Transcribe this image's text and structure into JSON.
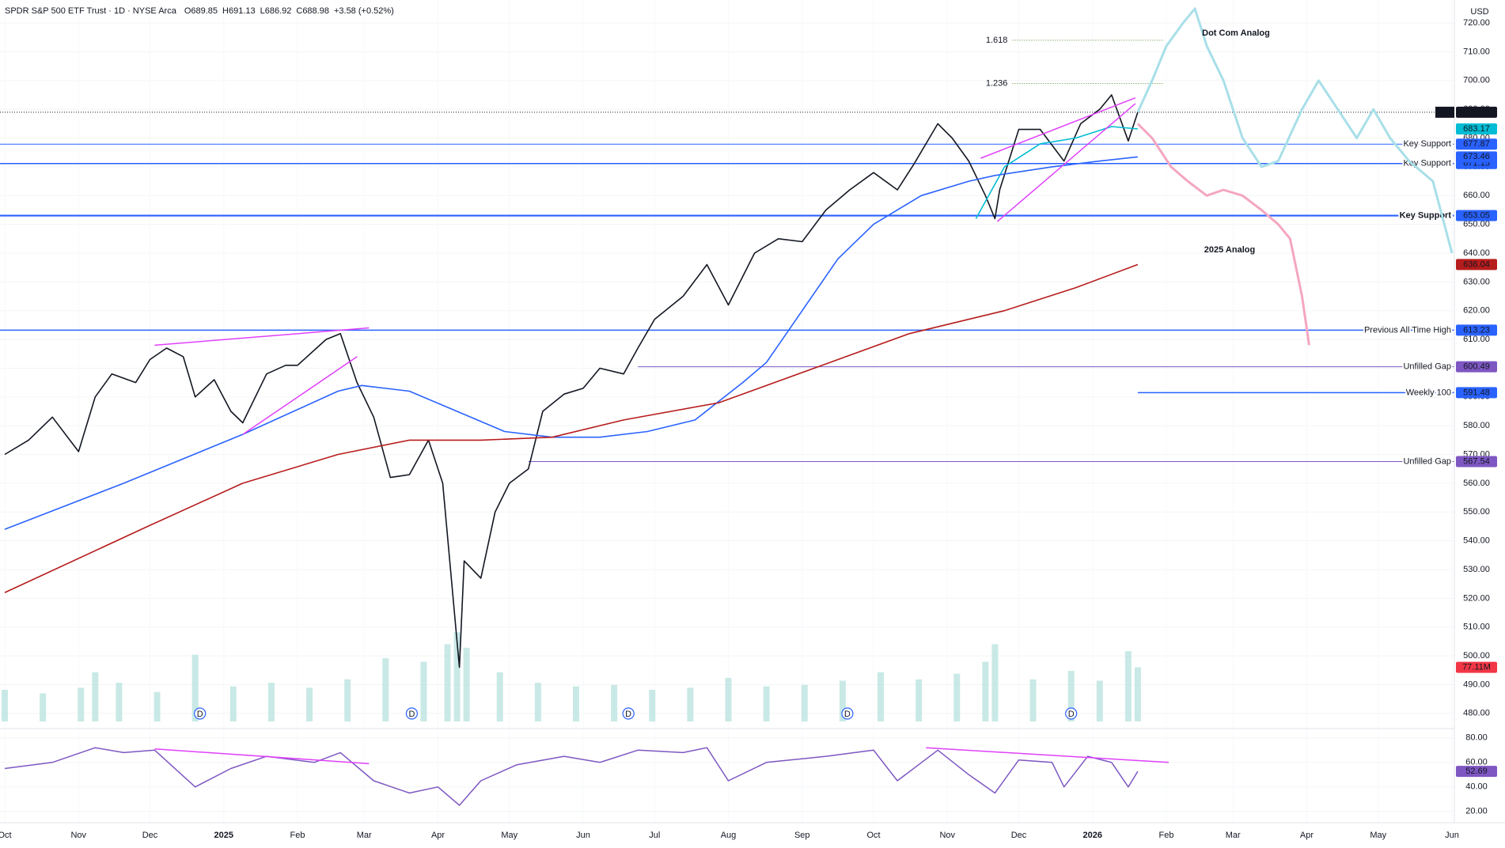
{
  "header": {
    "symbol": "SPDR S&P 500 ETF Trust · 1D · NYSE Arca",
    "ohlc": [
      "O689.85",
      "H691.13",
      "L686.92",
      "C688.98"
    ],
    "change": "+3.58 (+0.52%)",
    "currency": "USD"
  },
  "chart_data": [
    {
      "type": "line",
      "xlim": [
        -2,
        609
      ],
      "ylim": [
        475,
        728
      ],
      "xticks": [
        {
          "value": 0,
          "label": "Oct"
        },
        {
          "value": 31,
          "label": "Nov"
        },
        {
          "value": 61,
          "label": "Dec"
        },
        {
          "value": 92,
          "label": "2025"
        },
        {
          "value": 123,
          "label": "Feb"
        },
        {
          "value": 151,
          "label": "Mar"
        },
        {
          "value": 182,
          "label": "Apr"
        },
        {
          "value": 212,
          "label": "May"
        },
        {
          "value": 243,
          "label": "Jun"
        },
        {
          "value": 273,
          "label": "Jul"
        },
        {
          "value": 304,
          "label": "Aug"
        },
        {
          "value": 335,
          "label": "Sep"
        },
        {
          "value": 365,
          "label": "Oct"
        },
        {
          "value": 396,
          "label": "Nov"
        },
        {
          "value": 426,
          "label": "Dec"
        },
        {
          "value": 457,
          "label": "2026"
        },
        {
          "value": 488,
          "label": "Feb"
        },
        {
          "value": 516,
          "label": "Mar"
        },
        {
          "value": 547,
          "label": "Apr"
        },
        {
          "value": 577,
          "label": "May"
        },
        {
          "value": 608,
          "label": "Jun"
        }
      ],
      "yticks": [
        {
          "value": 480,
          "label": "480.00"
        },
        {
          "value": 490,
          "label": "490.00"
        },
        {
          "value": 500,
          "label": "500.00"
        },
        {
          "value": 510,
          "label": "510.00"
        },
        {
          "value": 520,
          "label": "520.00"
        },
        {
          "value": 530,
          "label": "530.00"
        },
        {
          "value": 540,
          "label": "540.00"
        },
        {
          "value": 550,
          "label": "550.00"
        },
        {
          "value": 560,
          "label": "560.00"
        },
        {
          "value": 570,
          "label": "570.00"
        },
        {
          "value": 580,
          "label": "580.00"
        },
        {
          "value": 590,
          "label": "590.00"
        },
        {
          "value": 600,
          "label": "600.00"
        },
        {
          "value": 610,
          "label": "610.00"
        },
        {
          "value": 620,
          "label": "620.00"
        },
        {
          "value": 630,
          "label": "630.00"
        },
        {
          "value": 640,
          "label": "640.00"
        },
        {
          "value": 650,
          "label": "650.00"
        },
        {
          "value": 660,
          "label": "660.00"
        },
        {
          "value": 670,
          "label": "670.00"
        },
        {
          "value": 680,
          "label": "680.00"
        },
        {
          "value": 690,
          "label": "690.00"
        },
        {
          "value": 700,
          "label": "700.00"
        },
        {
          "value": 710,
          "label": "710.00"
        },
        {
          "value": 720,
          "label": "720.00"
        }
      ],
      "series": [
        {
          "name": "SPY",
          "color": "#131722",
          "width": 1.6,
          "x": [
            0,
            10,
            20,
            31,
            38,
            45,
            55,
            61,
            68,
            75,
            80,
            88,
            95,
            100,
            110,
            118,
            123,
            135,
            141,
            148,
            155,
            162,
            170,
            178,
            184,
            190,
            191,
            193,
            200,
            206,
            212,
            220,
            226,
            235,
            243,
            250,
            260,
            266,
            273,
            285,
            295,
            304,
            315,
            325,
            335,
            345,
            355,
            365,
            375,
            382,
            392,
            398,
            405,
            412,
            416,
            418,
            426,
            435,
            445,
            452,
            460,
            465,
            472,
            476
          ],
          "values": [
            570,
            575,
            583,
            571,
            590,
            598,
            595,
            603,
            607,
            604,
            590,
            596,
            585,
            581,
            598,
            601,
            601,
            610,
            612,
            595,
            583,
            562,
            563,
            575,
            560,
            505,
            496,
            533,
            527,
            550,
            560,
            565,
            585,
            591,
            593,
            600,
            598,
            607,
            617,
            625,
            636,
            622,
            640,
            645,
            644,
            655,
            662,
            668,
            662,
            671,
            685,
            680,
            672,
            660,
            652,
            662,
            683,
            683,
            672,
            685,
            690,
            695,
            679,
            688.98
          ]
        },
        {
          "color": "#00bcd4",
          "width": 1.6,
          "x": [
            408,
            420,
            435,
            450,
            465,
            476
          ],
          "values": [
            652,
            670,
            678,
            680,
            684,
            683.17
          ]
        },
        {
          "color": "#2962ff",
          "width": 1.6,
          "x": [
            0,
            50,
            100,
            140,
            150,
            170,
            190,
            210,
            230,
            250,
            270,
            290,
            310,
            320,
            335,
            350,
            365,
            385,
            405,
            416,
            440,
            460,
            476
          ],
          "values": [
            544,
            560,
            577,
            592,
            594,
            592,
            585,
            578,
            576,
            576,
            578,
            582,
            595,
            602,
            620,
            638,
            650,
            660,
            665,
            667,
            670,
            672,
            673.46
          ]
        },
        {
          "color": "#b71c1c",
          "width": 1.6,
          "x": [
            0,
            60,
            100,
            140,
            170,
            200,
            230,
            260,
            300,
            340,
            380,
            420,
            450,
            476
          ],
          "values": [
            522,
            545,
            560,
            570,
            575,
            575,
            576,
            582,
            588,
            600,
            612,
            620,
            628,
            636.04
          ]
        },
        {
          "name": "Dot Com Analog",
          "color": "#a8dfe8",
          "width": 3,
          "x": [
            476,
            482,
            488,
            495,
            500,
            505,
            512,
            520,
            528,
            535,
            545,
            552,
            560,
            568,
            575,
            582,
            590,
            600,
            608
          ],
          "values": [
            689,
            700,
            712,
            720,
            725,
            712,
            700,
            680,
            670,
            672,
            690,
            700,
            690,
            680,
            690,
            680,
            672,
            665,
            640
          ]
        },
        {
          "name": "2025 Analog",
          "color": "#f4a6c0",
          "width": 3,
          "x": [
            476,
            482,
            490,
            497,
            505,
            512,
            520,
            528,
            535,
            540,
            545,
            548
          ],
          "values": [
            685,
            680,
            670,
            665,
            660,
            662,
            660,
            655,
            650,
            645,
            625,
            608
          ]
        }
      ],
      "price_line": {
        "label": "SPY",
        "value": 688.98
      },
      "levels": [
        {
          "label": "Key Support",
          "value": 677.87,
          "color": "#2962ff",
          "width": 1,
          "x0": -2
        },
        {
          "label": "Key Support",
          "value": 671.15,
          "color": "#2962ff",
          "width": 1.5,
          "x0": -2
        },
        {
          "label": "Key Support",
          "value": 653.05,
          "color": "#2962ff",
          "width": 2.2,
          "x0": -2,
          "bold": true
        },
        {
          "label": "Previous All Time High",
          "value": 613.23,
          "color": "#2962ff",
          "width": 1.5,
          "x0": -2
        },
        {
          "label": "Unfilled Gap",
          "value": 600.49,
          "color": "#7e57c2",
          "width": 1,
          "x0": 266
        },
        {
          "label": "Weekly 100",
          "value": 591.48,
          "color": "#2962ff",
          "width": 1.5,
          "x0": 476
        },
        {
          "label": "Unfilled Gap",
          "value": 567.54,
          "color": "#7e57c2",
          "width": 1,
          "x0": 220
        }
      ],
      "fibs": [
        {
          "ratio": 1.618,
          "value": 714,
          "x": [
            410,
            487
          ]
        },
        {
          "ratio": 1.236,
          "value": 699,
          "x": [
            410,
            487
          ]
        }
      ],
      "trendlines": [
        {
          "x": [
            63,
            153
          ],
          "values": [
            608,
            614
          ]
        },
        {
          "x": [
            100,
            148
          ],
          "values": [
            577,
            604
          ]
        },
        {
          "x": [
            410,
            475
          ],
          "values": [
            673,
            694
          ]
        },
        {
          "x": [
            417,
            475
          ],
          "values": [
            651,
            692
          ]
        }
      ],
      "volume": {
        "vlim": [
          0,
          160
        ],
        "color": "#b2dfdb",
        "last_label": "77.11M",
        "x": [
          0,
          16,
          32,
          38,
          48,
          64,
          80,
          96,
          112,
          128,
          144,
          160,
          176,
          186,
          190,
          194,
          208,
          224,
          240,
          256,
          272,
          288,
          304,
          320,
          336,
          352,
          368,
          384,
          400,
          412,
          416,
          432,
          448,
          460,
          472,
          476
        ],
        "values": [
          45,
          40,
          48,
          70,
          55,
          42,
          95,
          50,
          55,
          48,
          60,
          90,
          85,
          110,
          127,
          105,
          70,
          55,
          50,
          52,
          45,
          48,
          62,
          50,
          52,
          58,
          70,
          60,
          68,
          85,
          110,
          60,
          72,
          58,
          100,
          77.11
        ]
      },
      "dividends": {
        "x": [
          82,
          171,
          262,
          354,
          448
        ],
        "labels": [
          "D",
          "D",
          "D",
          "D",
          "D"
        ]
      }
    },
    {
      "type": "line",
      "xlim": [
        -2,
        609
      ],
      "ylim": [
        14,
        87
      ],
      "yticks": [
        {
          "value": 20,
          "label": "20.00"
        },
        {
          "value": 40,
          "label": "40.00"
        },
        {
          "value": 60,
          "label": "60.00"
        },
        {
          "value": 80,
          "label": "80.00"
        }
      ],
      "series": [
        {
          "color": "#7e57c2",
          "width": 1.5,
          "x": [
            0,
            20,
            38,
            50,
            63,
            80,
            95,
            110,
            130,
            141,
            155,
            170,
            182,
            191,
            200,
            215,
            235,
            250,
            266,
            285,
            295,
            304,
            320,
            345,
            365,
            375,
            392,
            405,
            416,
            426,
            440,
            445,
            455,
            465,
            472,
            476
          ],
          "values": [
            55,
            60,
            72,
            68,
            70,
            40,
            55,
            65,
            60,
            68,
            45,
            35,
            40,
            25,
            45,
            58,
            65,
            60,
            70,
            68,
            72,
            45,
            60,
            65,
            70,
            45,
            70,
            50,
            35,
            62,
            60,
            40,
            65,
            60,
            40,
            52.69
          ]
        }
      ],
      "trendlines": [
        {
          "x": [
            63,
            153
          ],
          "values": [
            71,
            59
          ]
        },
        {
          "x": [
            387,
            489
          ],
          "values": [
            72,
            60
          ]
        }
      ]
    }
  ]
}
